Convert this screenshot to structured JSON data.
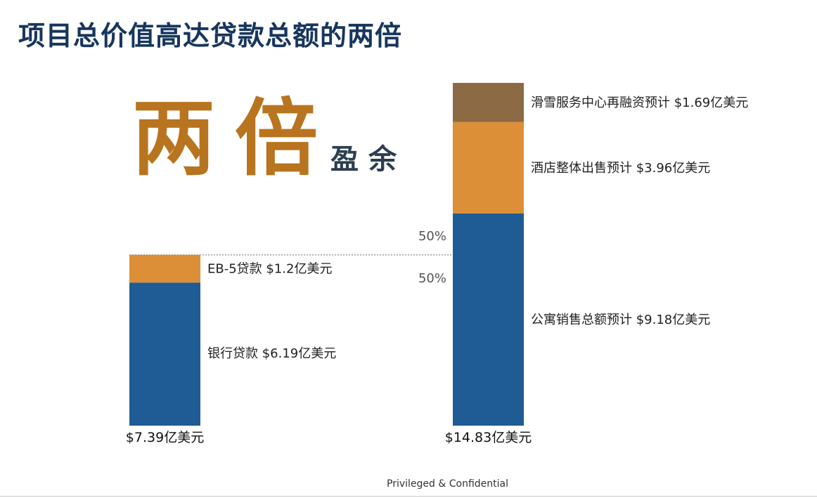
{
  "title": "项目总价值高达贷款总额的两倍",
  "headline": {
    "big": "两倍",
    "small": "盈余"
  },
  "footer": "Privileged & Confidential",
  "colors": {
    "blue": "#1f5b94",
    "orange": "#dc8f36",
    "brown": "#8c6a43",
    "title": "#17365d",
    "accent": "#b8741e",
    "dashed": "#9a9a9a"
  },
  "chart_data": {
    "type": "bar",
    "stacked": true,
    "unit": "亿美元",
    "bars": [
      {
        "total_label": "$7.39亿美元",
        "total": 7.39,
        "segments": [
          {
            "label": "银行贷款 $6.19亿美元",
            "value": 6.19,
            "color": "#1f5b94"
          },
          {
            "label": "EB-5贷款 $1.2亿美元",
            "value": 1.2,
            "color": "#dc8f36"
          }
        ]
      },
      {
        "total_label": "$14.83亿美元",
        "total": 14.83,
        "segments": [
          {
            "label": "公寓销售总额预计 $9.18亿美元",
            "value": 9.18,
            "color": "#1f5b94"
          },
          {
            "label": "酒店整体出售预计 $3.96亿美元",
            "value": 3.96,
            "color": "#dc8f36"
          },
          {
            "label": "滑雪服务中心再融资预计 $1.69亿美元",
            "value": 1.69,
            "color": "#8c6a43"
          }
        ]
      }
    ],
    "reference_line": {
      "value": 7.39,
      "label_above": "50%",
      "label_below": "50%"
    }
  }
}
